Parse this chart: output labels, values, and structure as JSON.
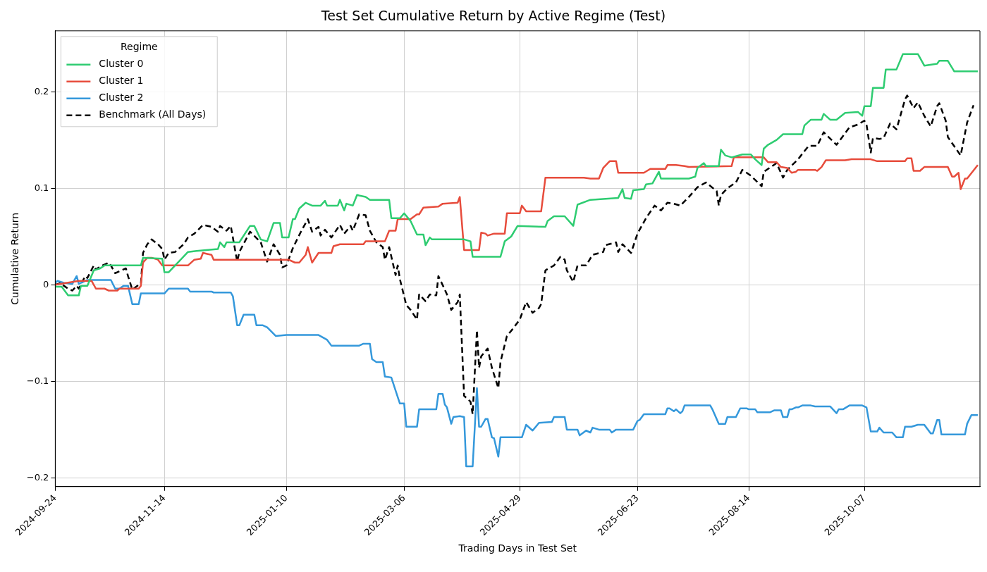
{
  "chart_data": {
    "type": "line",
    "title": "Test Set Cumulative Return by Active Regime (Test)",
    "xlabel": "Trading Days in Test Set",
    "ylabel": "Cumulative Return",
    "legend_title": "Regime",
    "legend": "top left",
    "grid": true,
    "line_style": "solid",
    "marker": "none",
    "xlim": [
      "2024-09-24",
      "2025-11-30"
    ],
    "xticks": [
      "2024-09-24",
      "2024-11-14",
      "2025-01-10",
      "2025-03-06",
      "2025-04-29",
      "2025-06-23",
      "2025-08-14",
      "2025-10-07"
    ],
    "ylim": [
      -0.209,
      0.263
    ],
    "yticks": [
      {
        "value": -0.2,
        "label": "−0.2"
      },
      {
        "value": -0.1,
        "label": "−0.1"
      },
      0.0,
      0.1,
      0.2
    ],
    "series": [
      {
        "name": "Cluster 0",
        "color": "#2ecc71",
        "x": [
          "2024-09-24",
          "2024-09-27",
          "2024-09-30",
          "2024-10-05",
          "2024-10-06",
          "2024-10-09",
          "2024-10-12",
          "2024-10-15",
          "2024-10-17",
          "2024-10-27",
          "2024-10-28",
          "2024-11-03",
          "2024-11-04",
          "2024-11-13",
          "2024-11-14",
          "2024-11-16",
          "2024-11-25",
          "2024-11-29",
          "2024-12-09",
          "2024-12-10",
          "2024-12-12",
          "2024-12-13",
          "2024-12-19",
          "2024-12-24",
          "2024-12-26",
          "2024-12-29",
          "2025-01-01",
          "2025-01-04",
          "2025-01-07",
          "2025-01-08",
          "2025-01-11",
          "2025-01-13",
          "2025-01-14",
          "2025-01-16",
          "2025-01-19",
          "2025-01-22",
          "2025-01-26",
          "2025-01-28",
          "2025-01-29",
          "2025-02-03",
          "2025-02-04",
          "2025-02-06",
          "2025-02-07",
          "2025-02-10",
          "2025-02-12",
          "2025-02-16",
          "2025-02-18",
          "2025-02-27",
          "2025-02-28",
          "2025-03-04",
          "2025-03-06",
          "2025-03-09",
          "2025-03-12",
          "2025-03-15",
          "2025-03-16",
          "2025-03-18",
          "2025-03-19",
          "2025-04-03",
          "2025-04-06",
          "2025-04-07",
          "2025-04-20",
          "2025-04-22",
          "2025-04-25",
          "2025-04-28",
          "2025-05-11",
          "2025-05-12",
          "2025-05-15",
          "2025-05-20",
          "2025-05-24",
          "2025-05-26",
          "2025-06-01",
          "2025-06-14",
          "2025-06-16",
          "2025-06-17",
          "2025-06-20",
          "2025-06-21",
          "2025-06-26",
          "2025-06-27",
          "2025-06-30",
          "2025-07-03",
          "2025-07-04",
          "2025-07-17",
          "2025-07-20",
          "2025-07-21",
          "2025-07-24",
          "2025-07-25",
          "2025-07-31",
          "2025-08-01",
          "2025-08-03",
          "2025-08-06",
          "2025-08-11",
          "2025-08-15",
          "2025-08-17",
          "2025-08-20",
          "2025-08-21",
          "2025-08-23",
          "2025-08-27",
          "2025-08-30",
          "2025-09-08",
          "2025-09-09",
          "2025-09-12",
          "2025-09-17",
          "2025-09-18",
          "2025-09-21",
          "2025-09-24",
          "2025-09-28",
          "2025-10-04",
          "2025-10-06",
          "2025-10-07",
          "2025-10-10",
          "2025-10-11",
          "2025-10-16",
          "2025-10-17",
          "2025-10-22",
          "2025-10-25",
          "2025-11-01",
          "2025-11-04",
          "2025-11-10",
          "2025-11-11",
          "2025-11-15",
          "2025-11-18",
          "2025-11-29"
        ],
        "values": [
          -0.002,
          -0.002,
          -0.011,
          -0.011,
          -0.001,
          -0.001,
          0.015,
          0.017,
          0.02,
          0.02,
          0.02,
          0.02,
          0.028,
          0.027,
          0.013,
          0.013,
          0.034,
          0.035,
          0.037,
          0.044,
          0.039,
          0.044,
          0.044,
          0.061,
          0.061,
          0.047,
          0.045,
          0.064,
          0.064,
          0.049,
          0.049,
          0.068,
          0.068,
          0.079,
          0.085,
          0.082,
          0.082,
          0.087,
          0.082,
          0.082,
          0.088,
          0.077,
          0.084,
          0.082,
          0.093,
          0.091,
          0.088,
          0.088,
          0.069,
          0.069,
          0.074,
          0.066,
          0.052,
          0.052,
          0.041,
          0.049,
          0.047,
          0.047,
          0.045,
          0.029,
          0.029,
          0.045,
          0.05,
          0.061,
          0.06,
          0.066,
          0.071,
          0.071,
          0.061,
          0.083,
          0.088,
          0.09,
          0.099,
          0.09,
          0.089,
          0.098,
          0.099,
          0.104,
          0.105,
          0.117,
          0.11,
          0.11,
          0.112,
          0.121,
          0.126,
          0.123,
          0.123,
          0.14,
          0.134,
          0.132,
          0.135,
          0.135,
          0.13,
          0.124,
          0.141,
          0.145,
          0.15,
          0.156,
          0.156,
          0.165,
          0.171,
          0.171,
          0.177,
          0.171,
          0.171,
          0.178,
          0.179,
          0.175,
          0.185,
          0.185,
          0.204,
          0.204,
          0.223,
          0.223,
          0.239,
          0.239,
          0.227,
          0.229,
          0.232,
          0.232,
          0.221,
          0.221
        ]
      },
      {
        "name": "Cluster 1",
        "color": "#e74c3c",
        "x": [
          "2024-09-24",
          "2024-10-05",
          "2024-10-11",
          "2024-10-13",
          "2024-10-17",
          "2024-10-19",
          "2024-10-23",
          "2024-10-24",
          "2024-11-02",
          "2024-11-03",
          "2024-11-04",
          "2024-11-06",
          "2024-11-08",
          "2024-11-11",
          "2024-11-13",
          "2024-11-25",
          "2024-11-28",
          "2024-12-01",
          "2024-12-02",
          "2024-12-04",
          "2024-12-06",
          "2024-12-07",
          "2025-01-11",
          "2025-01-14",
          "2025-01-16",
          "2025-01-19",
          "2025-01-20",
          "2025-01-22",
          "2025-01-25",
          "2025-01-31",
          "2025-02-01",
          "2025-02-04",
          "2025-02-15",
          "2025-02-16",
          "2025-02-25",
          "2025-02-27",
          "2025-03-02",
          "2025-03-03",
          "2025-03-09",
          "2025-03-12",
          "2025-03-13",
          "2025-03-15",
          "2025-03-22",
          "2025-03-24",
          "2025-03-31",
          "2025-04-01",
          "2025-04-03",
          "2025-04-10",
          "2025-04-11",
          "2025-04-13",
          "2025-04-14",
          "2025-04-17",
          "2025-04-22",
          "2025-04-23",
          "2025-04-29",
          "2025-04-30",
          "2025-05-02",
          "2025-05-09",
          "2025-05-11",
          "2025-05-29",
          "2025-06-01",
          "2025-06-05",
          "2025-06-07",
          "2025-06-10",
          "2025-06-13",
          "2025-06-14",
          "2025-06-26",
          "2025-06-29",
          "2025-07-06",
          "2025-07-07",
          "2025-07-11",
          "2025-07-15",
          "2025-07-17",
          "2025-08-06",
          "2025-08-07",
          "2025-08-21",
          "2025-08-23",
          "2025-08-27",
          "2025-08-29",
          "2025-09-01",
          "2025-09-03",
          "2025-09-05",
          "2025-09-06",
          "2025-09-14",
          "2025-09-15",
          "2025-09-17",
          "2025-09-19",
          "2025-09-28",
          "2025-10-01",
          "2025-10-10",
          "2025-10-13",
          "2025-10-26",
          "2025-10-27",
          "2025-10-29",
          "2025-10-30",
          "2025-11-02",
          "2025-11-04",
          "2025-11-15",
          "2025-11-17",
          "2025-11-18",
          "2025-11-20",
          "2025-11-21",
          "2025-11-23",
          "2025-11-24",
          "2025-11-29"
        ],
        "values": [
          0.0,
          0.004,
          0.004,
          -0.004,
          -0.004,
          -0.006,
          -0.006,
          -0.004,
          -0.004,
          -0.001,
          0.023,
          0.028,
          0.028,
          0.026,
          0.02,
          0.02,
          0.026,
          0.027,
          0.033,
          0.032,
          0.031,
          0.026,
          0.026,
          0.023,
          0.023,
          0.031,
          0.039,
          0.023,
          0.033,
          0.033,
          0.04,
          0.042,
          0.042,
          0.045,
          0.045,
          0.056,
          0.056,
          0.068,
          0.068,
          0.073,
          0.073,
          0.08,
          0.081,
          0.084,
          0.085,
          0.091,
          0.036,
          0.036,
          0.054,
          0.053,
          0.051,
          0.053,
          0.053,
          0.074,
          0.074,
          0.082,
          0.076,
          0.076,
          0.111,
          0.111,
          0.11,
          0.11,
          0.121,
          0.128,
          0.128,
          0.116,
          0.116,
          0.12,
          0.12,
          0.124,
          0.124,
          0.123,
          0.122,
          0.123,
          0.132,
          0.132,
          0.127,
          0.127,
          0.122,
          0.121,
          0.116,
          0.117,
          0.119,
          0.119,
          0.118,
          0.122,
          0.129,
          0.129,
          0.13,
          0.13,
          0.128,
          0.128,
          0.131,
          0.131,
          0.118,
          0.118,
          0.122,
          0.122,
          0.112,
          0.112,
          0.116,
          0.099,
          0.11,
          0.11,
          0.124
        ]
      },
      {
        "name": "Cluster 2",
        "color": "#3498db",
        "x": [
          "2024-09-24",
          "2024-09-25",
          "2024-09-28",
          "2024-10-02",
          "2024-10-04",
          "2024-10-05",
          "2024-10-08",
          "2024-10-09",
          "2024-10-20",
          "2024-10-22",
          "2024-10-24",
          "2024-10-26",
          "2024-10-28",
          "2024-10-30",
          "2024-11-02",
          "2024-11-03",
          "2024-11-14",
          "2024-11-16",
          "2024-11-25",
          "2024-11-26",
          "2024-12-06",
          "2024-12-07",
          "2024-12-15",
          "2024-12-16",
          "2024-12-18",
          "2024-12-19",
          "2024-12-21",
          "2024-12-26",
          "2024-12-27",
          "2024-12-30",
          "2025-01-01",
          "2025-01-05",
          "2025-01-10",
          "2025-01-25",
          "2025-01-29",
          "2025-01-31",
          "2025-02-13",
          "2025-02-15",
          "2025-02-18",
          "2025-02-19",
          "2025-02-21",
          "2025-02-24",
          "2025-02-25",
          "2025-02-28",
          "2025-03-04",
          "2025-03-06",
          "2025-03-07",
          "2025-03-12",
          "2025-03-13",
          "2025-03-21",
          "2025-03-22",
          "2025-03-24",
          "2025-03-25",
          "2025-03-26",
          "2025-03-28",
          "2025-03-29",
          "2025-04-01",
          "2025-04-03",
          "2025-04-04",
          "2025-04-07",
          "2025-04-09",
          "2025-04-10",
          "2025-04-11",
          "2025-04-13",
          "2025-04-14",
          "2025-04-16",
          "2025-04-17",
          "2025-04-19",
          "2025-04-20",
          "2025-04-30",
          "2025-05-02",
          "2025-05-05",
          "2025-05-08",
          "2025-05-14",
          "2025-05-15",
          "2025-05-20",
          "2025-05-21",
          "2025-05-26",
          "2025-05-27",
          "2025-05-30",
          "2025-06-01",
          "2025-06-02",
          "2025-06-05",
          "2025-06-10",
          "2025-06-11",
          "2025-06-13",
          "2025-06-21",
          "2025-06-23",
          "2025-06-24",
          "2025-06-26",
          "2025-07-06",
          "2025-07-07",
          "2025-07-08",
          "2025-07-10",
          "2025-07-11",
          "2025-07-13",
          "2025-07-14",
          "2025-07-15",
          "2025-07-27",
          "2025-07-28",
          "2025-07-31",
          "2025-08-03",
          "2025-08-04",
          "2025-08-08",
          "2025-08-10",
          "2025-08-13",
          "2025-08-14",
          "2025-08-17",
          "2025-08-18",
          "2025-08-24",
          "2025-08-26",
          "2025-08-29",
          "2025-08-30",
          "2025-09-01",
          "2025-09-02",
          "2025-09-03",
          "2025-09-05",
          "2025-09-06",
          "2025-09-08",
          "2025-09-12",
          "2025-09-14",
          "2025-09-21",
          "2025-09-24",
          "2025-09-25",
          "2025-09-27",
          "2025-09-30",
          "2025-10-06",
          "2025-10-08",
          "2025-10-10",
          "2025-10-13",
          "2025-10-14",
          "2025-10-16",
          "2025-10-20",
          "2025-10-22",
          "2025-10-25",
          "2025-10-26",
          "2025-10-29",
          "2025-11-01",
          "2025-11-04",
          "2025-11-07",
          "2025-11-08",
          "2025-11-10",
          "2025-11-11",
          "2025-11-12",
          "2025-11-23",
          "2025-11-24",
          "2025-11-26",
          "2025-11-29"
        ],
        "values": [
          0.002,
          0.004,
          0.002,
          0.001,
          0.009,
          0.001,
          0.004,
          0.005,
          0.005,
          -0.004,
          -0.004,
          -0.001,
          -0.001,
          -0.02,
          -0.02,
          -0.009,
          -0.009,
          -0.004,
          -0.004,
          -0.007,
          -0.007,
          -0.008,
          -0.008,
          -0.012,
          -0.042,
          -0.042,
          -0.031,
          -0.031,
          -0.042,
          -0.042,
          -0.044,
          -0.053,
          -0.052,
          -0.052,
          -0.057,
          -0.063,
          -0.063,
          -0.061,
          -0.061,
          -0.077,
          -0.08,
          -0.08,
          -0.095,
          -0.096,
          -0.123,
          -0.123,
          -0.147,
          -0.147,
          -0.129,
          -0.129,
          -0.113,
          -0.113,
          -0.124,
          -0.127,
          -0.144,
          -0.137,
          -0.136,
          -0.137,
          -0.188,
          -0.188,
          -0.107,
          -0.147,
          -0.147,
          -0.139,
          -0.139,
          -0.158,
          -0.159,
          -0.178,
          -0.158,
          -0.158,
          -0.145,
          -0.151,
          -0.143,
          -0.142,
          -0.137,
          -0.137,
          -0.15,
          -0.15,
          -0.156,
          -0.151,
          -0.153,
          -0.148,
          -0.15,
          -0.15,
          -0.153,
          -0.15,
          -0.15,
          -0.141,
          -0.14,
          -0.134,
          -0.134,
          -0.128,
          -0.128,
          -0.131,
          -0.129,
          -0.133,
          -0.131,
          -0.125,
          -0.125,
          -0.129,
          -0.144,
          -0.144,
          -0.137,
          -0.137,
          -0.128,
          -0.128,
          -0.129,
          -0.129,
          -0.132,
          -0.132,
          -0.13,
          -0.13,
          -0.137,
          -0.137,
          -0.129,
          -0.129,
          -0.127,
          -0.127,
          -0.125,
          -0.125,
          -0.126,
          -0.126,
          -0.133,
          -0.129,
          -0.129,
          -0.125,
          -0.125,
          -0.127,
          -0.152,
          -0.152,
          -0.148,
          -0.153,
          -0.153,
          -0.158,
          -0.158,
          -0.147,
          -0.147,
          -0.145,
          -0.145,
          -0.154,
          -0.154,
          -0.14,
          -0.14,
          -0.155,
          -0.155,
          -0.144,
          -0.135,
          -0.135
        ]
      },
      {
        "name": "Benchmark (All Days)",
        "color": "#000000",
        "line_style": "dashed",
        "x": [
          "2024-09-24",
          "2024-09-27",
          "2024-09-28",
          "2024-09-30",
          "2024-10-02",
          "2024-10-04",
          "2024-10-05",
          "2024-10-08",
          "2024-10-09",
          "2024-10-12",
          "2024-10-13",
          "2024-10-16",
          "2024-10-19",
          "2024-10-20",
          "2024-10-22",
          "2024-10-24",
          "2024-10-27",
          "2024-10-28",
          "2024-10-30",
          "2024-11-02",
          "2024-11-03",
          "2024-11-04",
          "2024-11-06",
          "2024-11-08",
          "2024-11-11",
          "2024-11-13",
          "2024-11-14",
          "2024-11-16",
          "2024-11-19",
          "2024-11-23",
          "2024-11-25",
          "2024-11-28",
          "2024-12-02",
          "2024-12-06",
          "2024-12-09",
          "2024-12-10",
          "2024-12-13",
          "2024-12-15",
          "2024-12-18",
          "2024-12-19",
          "2024-12-24",
          "2024-12-29",
          "2025-01-01",
          "2025-01-04",
          "2025-01-07",
          "2025-01-08",
          "2025-01-10",
          "2025-01-13",
          "2025-01-17",
          "2025-01-20",
          "2025-01-22",
          "2025-01-25",
          "2025-01-26",
          "2025-01-28",
          "2025-01-31",
          "2025-02-04",
          "2025-02-06",
          "2025-02-09",
          "2025-02-10",
          "2025-02-13",
          "2025-02-16",
          "2025-02-18",
          "2025-02-21",
          "2025-02-24",
          "2025-02-25",
          "2025-02-27",
          "2025-03-02",
          "2025-03-03",
          "2025-03-04",
          "2025-03-07",
          "2025-03-09",
          "2025-03-12",
          "2025-03-13",
          "2025-03-16",
          "2025-03-18",
          "2025-03-21",
          "2025-03-22",
          "2025-03-25",
          "2025-03-26",
          "2025-03-28",
          "2025-03-31",
          "2025-04-01",
          "2025-04-03",
          "2025-04-06",
          "2025-04-07",
          "2025-04-09",
          "2025-04-10",
          "2025-04-11",
          "2025-04-14",
          "2025-04-16",
          "2025-04-19",
          "2025-04-20",
          "2025-04-23",
          "2025-04-26",
          "2025-04-29",
          "2025-05-02",
          "2025-05-05",
          "2025-05-08",
          "2025-05-09",
          "2025-05-11",
          "2025-05-15",
          "2025-05-18",
          "2025-05-20",
          "2025-05-21",
          "2025-05-24",
          "2025-05-26",
          "2025-05-30",
          "2025-06-02",
          "2025-06-07",
          "2025-06-08",
          "2025-06-13",
          "2025-06-14",
          "2025-06-16",
          "2025-06-20",
          "2025-06-23",
          "2025-06-27",
          "2025-07-01",
          "2025-07-04",
          "2025-07-07",
          "2025-07-10",
          "2025-07-13",
          "2025-07-17",
          "2025-07-21",
          "2025-07-25",
          "2025-07-30",
          "2025-07-31",
          "2025-08-01",
          "2025-08-04",
          "2025-08-08",
          "2025-08-11",
          "2025-08-15",
          "2025-08-20",
          "2025-08-21",
          "2025-08-27",
          "2025-08-30",
          "2025-09-01",
          "2025-09-06",
          "2025-09-11",
          "2025-09-15",
          "2025-09-18",
          "2025-09-24",
          "2025-09-30",
          "2025-10-04",
          "2025-10-07",
          "2025-10-08",
          "2025-10-10",
          "2025-10-11",
          "2025-10-14",
          "2025-10-16",
          "2025-10-19",
          "2025-10-22",
          "2025-10-26",
          "2025-10-27",
          "2025-10-30",
          "2025-11-01",
          "2025-11-04",
          "2025-11-07",
          "2025-11-10",
          "2025-11-11",
          "2025-11-14",
          "2025-11-15",
          "2025-11-21",
          "2025-11-24",
          "2025-11-27"
        ],
        "values": [
          0.0,
          0.002,
          -0.001,
          -0.004,
          -0.006,
          -0.001,
          -0.004,
          0.009,
          0.007,
          0.02,
          0.016,
          0.02,
          0.023,
          0.02,
          0.012,
          0.014,
          0.017,
          0.009,
          -0.005,
          0.0,
          0.001,
          0.033,
          0.042,
          0.047,
          0.042,
          0.037,
          0.026,
          0.033,
          0.034,
          0.042,
          0.049,
          0.053,
          0.062,
          0.06,
          0.055,
          0.061,
          0.056,
          0.061,
          0.024,
          0.034,
          0.055,
          0.044,
          0.024,
          0.042,
          0.031,
          0.018,
          0.02,
          0.038,
          0.056,
          0.068,
          0.055,
          0.06,
          0.051,
          0.057,
          0.049,
          0.062,
          0.053,
          0.061,
          0.056,
          0.073,
          0.072,
          0.056,
          0.044,
          0.039,
          0.026,
          0.039,
          0.01,
          0.02,
          0.006,
          -0.021,
          -0.026,
          -0.036,
          -0.01,
          -0.017,
          -0.01,
          -0.011,
          0.009,
          -0.005,
          -0.01,
          -0.026,
          -0.018,
          -0.01,
          -0.115,
          -0.121,
          -0.134,
          -0.047,
          -0.086,
          -0.074,
          -0.066,
          -0.086,
          -0.107,
          -0.08,
          -0.053,
          -0.045,
          -0.036,
          -0.018,
          -0.029,
          -0.024,
          -0.02,
          0.015,
          0.02,
          0.029,
          0.026,
          0.015,
          0.003,
          0.02,
          0.02,
          0.031,
          0.034,
          0.041,
          0.044,
          0.034,
          0.042,
          0.033,
          0.053,
          0.069,
          0.082,
          0.077,
          0.085,
          0.084,
          0.082,
          0.091,
          0.101,
          0.106,
          0.097,
          0.082,
          0.093,
          0.1,
          0.106,
          0.119,
          0.113,
          0.102,
          0.117,
          0.126,
          0.111,
          0.119,
          0.13,
          0.144,
          0.144,
          0.158,
          0.145,
          0.163,
          0.166,
          0.17,
          0.166,
          0.137,
          0.152,
          0.151,
          0.152,
          0.167,
          0.161,
          0.192,
          0.196,
          0.183,
          0.189,
          0.175,
          0.164,
          0.185,
          0.188,
          0.17,
          0.153,
          0.134,
          0.168,
          0.186
        ]
      }
    ]
  }
}
